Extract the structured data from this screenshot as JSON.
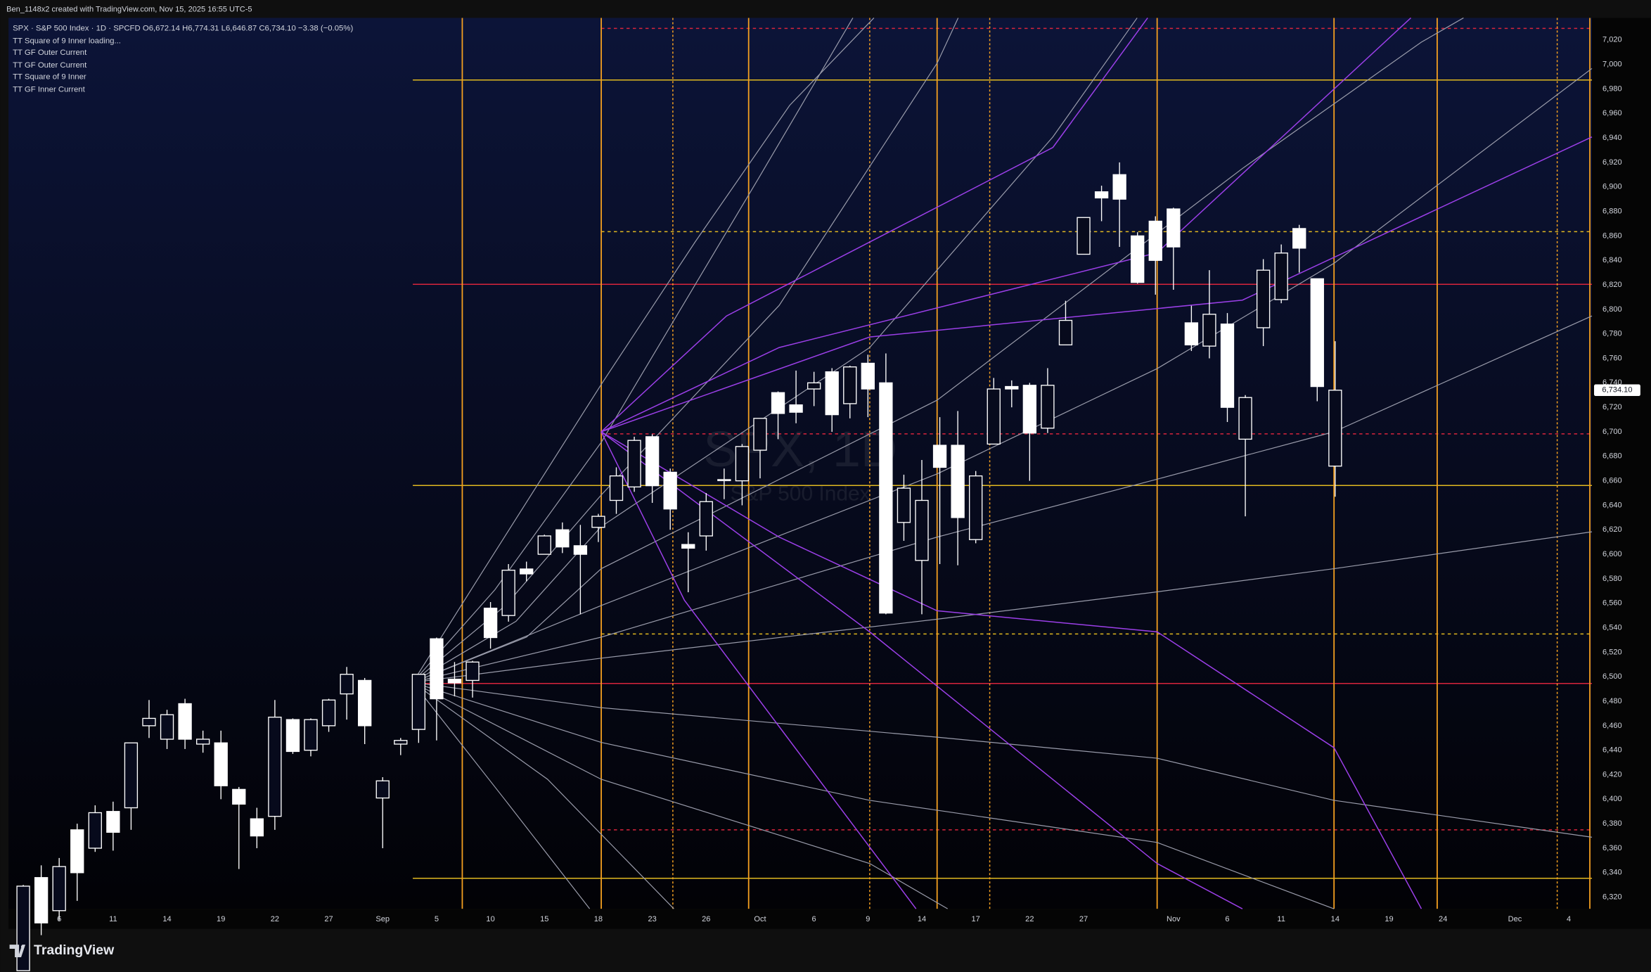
{
  "header": {
    "credit": "Ben_1148x2 created with TradingView.com, Nov 15, 2025 16:55 UTC-5",
    "symbol": "SPX · S&P 500 Index · 1D · SPCFD",
    "ohlc": [
      "O6,672.14",
      "H6,774.31",
      "L6,646.87",
      "C6,734.10",
      "−3.38 (−0.05%)"
    ],
    "indicators": [
      "TT Square of 9 Inner loading...",
      "TT GF Outer Current",
      "TT GF Outer Current",
      "TT Square of 9 Inner",
      "TT GF Inner Current"
    ]
  },
  "watermark": {
    "title": "SPX, 1D",
    "subtitle": "S&P 500 Index"
  },
  "footer": {
    "brand": "TradingView"
  },
  "chart_data": {
    "type": "candlestick",
    "color": "#ffffff",
    "hollow_up": true,
    "grid": false,
    "last_price_label": "6,734.10",
    "categories": [
      null,
      null,
      "6",
      null,
      null,
      "11",
      null,
      null,
      "14",
      null,
      null,
      "19",
      null,
      null,
      "22",
      null,
      null,
      "27",
      null,
      null,
      "Sep",
      null,
      null,
      "5",
      null,
      null,
      "10",
      null,
      null,
      "15",
      null,
      null,
      "18",
      null,
      null,
      "23",
      null,
      null,
      "26",
      null,
      null,
      "Oct",
      null,
      null,
      "6",
      null,
      null,
      "9",
      null,
      null,
      "14",
      null,
      null,
      "17",
      null,
      null,
      "22",
      null,
      null,
      "27",
      null,
      null,
      null,
      null,
      "Nov",
      null,
      null,
      "6",
      null,
      null,
      "11",
      null,
      null,
      "14",
      null,
      null,
      "19",
      null,
      null,
      "24",
      null,
      null,
      null,
      "Dec",
      null,
      null,
      "4",
      null
    ],
    "open": [
      6260,
      6336,
      6309,
      6375,
      6360,
      6390,
      6393,
      6460,
      6449,
      6478,
      6445,
      6446,
      6408,
      6384,
      6386,
      6465,
      6440,
      6460,
      6486,
      6497,
      6401,
      6445,
      6457,
      6531,
      6498,
      6497,
      6556,
      6550,
      6588,
      6600,
      6620,
      6607,
      6622,
      6644,
      6655,
      6696,
      6667,
      6608,
      6615,
      6661,
      6660,
      6685,
      6732,
      6722,
      6735,
      6749,
      6723,
      6756,
      6740,
      6626,
      6595,
      6689,
      6689,
      6612,
      6690,
      6737,
      6738,
      6703,
      6771,
      6845,
      6896,
      6910,
      6860,
      6872,
      6882,
      6789,
      6770,
      6788,
      6694,
      6785,
      6808,
      6866,
      6825,
      6672,
      null,
      null,
      null,
      null,
      null,
      null,
      null,
      null,
      null,
      null,
      null,
      null,
      null,
      null
    ],
    "high": [
      6330,
      6346,
      6352,
      6380,
      6395,
      6398,
      6446,
      6481,
      6473,
      6482,
      6456,
      6456,
      6410,
      6393,
      6481,
      6466,
      6466,
      6482,
      6508,
      6499,
      6418,
      6450,
      6502,
      6532,
      6512,
      6513,
      6561,
      6592,
      6594,
      6616,
      6626,
      6624,
      6633,
      6671,
      6696,
      6698,
      6670,
      6618,
      6650,
      6670,
      6690,
      6711,
      6733,
      6750,
      6749,
      6752,
      6754,
      6763,
      6764,
      6665,
      6677,
      6712,
      6717,
      6668,
      6744,
      6742,
      6740,
      6752,
      6807,
      6875,
      6901,
      6920,
      6863,
      6876,
      6883,
      6803,
      6832,
      6797,
      6730,
      6841,
      6853,
      6869,
      6825,
      6774,
      null,
      null,
      null,
      null,
      null,
      null,
      null,
      null,
      null,
      null,
      null,
      null,
      null,
      null
    ],
    "low": [
      6260,
      6289,
      6301,
      6317,
      6357,
      6358,
      6375,
      6450,
      6441,
      6441,
      6438,
      6400,
      6343,
      6360,
      6375,
      6437,
      6435,
      6455,
      6465,
      6445,
      6360,
      6436,
      6446,
      6448,
      6484,
      6483,
      6523,
      6545,
      6578,
      6600,
      6601,
      6551,
      6610,
      6633,
      6651,
      6642,
      6620,
      6569,
      6603,
      6645,
      6640,
      6662,
      6694,
      6707,
      6721,
      6700,
      6711,
      6712,
      6551,
      6611,
      6551,
      6592,
      6591,
      6609,
      6690,
      6720,
      6660,
      6699,
      6771,
      6845,
      6872,
      6851,
      6821,
      6812,
      6816,
      6766,
      6760,
      6708,
      6631,
      6770,
      6805,
      6830,
      6725,
      6647,
      null,
      null,
      null,
      null,
      null,
      null,
      null,
      null,
      null,
      null,
      null,
      null,
      null,
      null
    ],
    "close": [
      6329,
      6299,
      6345,
      6340,
      6389,
      6373,
      6446,
      6466,
      6469,
      6449,
      6449,
      6411,
      6396,
      6370,
      6467,
      6439,
      6465,
      6481,
      6502,
      6460,
      6415,
      6448,
      6502,
      6482,
      6495,
      6512,
      6532,
      6587,
      6584,
      6615,
      6606,
      6600,
      6631,
      6664,
      6693,
      6656,
      6637,
      6605,
      6643,
      6661,
      6688,
      6711,
      6715,
      6716,
      6740,
      6714,
      6753,
      6735,
      6552,
      6654,
      6644,
      6671,
      6630,
      6664,
      6735,
      6735,
      6699,
      6738,
      6791,
      6875,
      6891,
      6890,
      6822,
      6840,
      6851,
      6771,
      6796,
      6720,
      6728,
      6832,
      6846,
      6850,
      6737,
      6734,
      null,
      null,
      null,
      null,
      null,
      null,
      null,
      null,
      null,
      null,
      null,
      null,
      null,
      null
    ],
    "ylim": [
      6310.5,
      7038
    ],
    "yticks": [
      {
        "value": 6320,
        "label": "6,320"
      },
      {
        "value": 6340,
        "label": "6,340"
      },
      {
        "value": 6360,
        "label": "6,360"
      },
      {
        "value": 6380,
        "label": "6,380"
      },
      {
        "value": 6400,
        "label": "6,400"
      },
      {
        "value": 6420,
        "label": "6,420"
      },
      {
        "value": 6440,
        "label": "6,440"
      },
      {
        "value": 6460,
        "label": "6,460"
      },
      {
        "value": 6480,
        "label": "6,480"
      },
      {
        "value": 6500,
        "label": "6,500"
      },
      {
        "value": 6520,
        "label": "6,520"
      },
      {
        "value": 6540,
        "label": "6,540"
      },
      {
        "value": 6560,
        "label": "6,560"
      },
      {
        "value": 6580,
        "label": "6,580"
      },
      {
        "value": 6600,
        "label": "6,600"
      },
      {
        "value": 6620,
        "label": "6,620"
      },
      {
        "value": 6640,
        "label": "6,640"
      },
      {
        "value": 6660,
        "label": "6,660"
      },
      {
        "value": 6680,
        "label": "6,680"
      },
      {
        "value": 6700,
        "label": "6,700"
      },
      {
        "value": 6720,
        "label": "6,720"
      },
      {
        "value": 6740,
        "label": "6,740"
      },
      {
        "value": 6760,
        "label": "6,760"
      },
      {
        "value": 6780,
        "label": "6,780"
      },
      {
        "value": 6800,
        "label": "6,800"
      },
      {
        "value": 6820,
        "label": "6,820"
      },
      {
        "value": 6840,
        "label": "6,840"
      },
      {
        "value": 6860,
        "label": "6,860"
      },
      {
        "value": 6880,
        "label": "6,880"
      },
      {
        "value": 6900,
        "label": "6,900"
      },
      {
        "value": 6920,
        "label": "6,920"
      },
      {
        "value": 6940,
        "label": "6,940"
      },
      {
        "value": 6960,
        "label": "6,960"
      },
      {
        "value": 6980,
        "label": "6,980"
      },
      {
        "value": 7000,
        "label": "7,000"
      },
      {
        "value": 7020,
        "label": "7,020"
      }
    ]
  }
}
